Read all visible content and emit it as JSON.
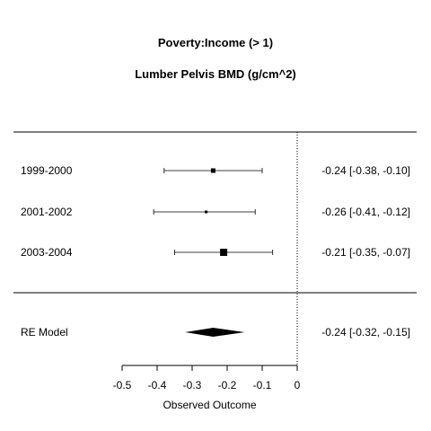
{
  "chart_data": {
    "type": "forest",
    "title": "Poverty:Income (> 1)",
    "subtitle": "Lumber Pelvis BMD (g/cm^2)",
    "xlabel": "Observed Outcome",
    "xlim": [
      -0.5,
      0
    ],
    "xticks": [
      -0.5,
      -0.4,
      -0.3,
      -0.2,
      -0.1,
      0
    ],
    "xtick_labels": [
      "-0.5",
      "-0.4",
      "-0.3",
      "-0.2",
      "-0.1",
      "0"
    ],
    "reference_line": 0,
    "studies": [
      {
        "label": "1999-2000",
        "estimate": -0.24,
        "lower": -0.38,
        "upper": -0.1,
        "weight_size": "small",
        "annotation": "-0.24 [-0.38, -0.10]"
      },
      {
        "label": "2001-2002",
        "estimate": -0.26,
        "lower": -0.41,
        "upper": -0.12,
        "weight_size": "tiny",
        "annotation": "-0.26 [-0.41, -0.12]"
      },
      {
        "label": "2003-2004",
        "estimate": -0.21,
        "lower": -0.35,
        "upper": -0.07,
        "weight_size": "large",
        "annotation": "-0.21 [-0.35, -0.07]"
      }
    ],
    "summary": {
      "label": "RE Model",
      "estimate": -0.24,
      "lower": -0.32,
      "upper": -0.15,
      "annotation": "-0.24 [-0.32, -0.15]"
    }
  }
}
